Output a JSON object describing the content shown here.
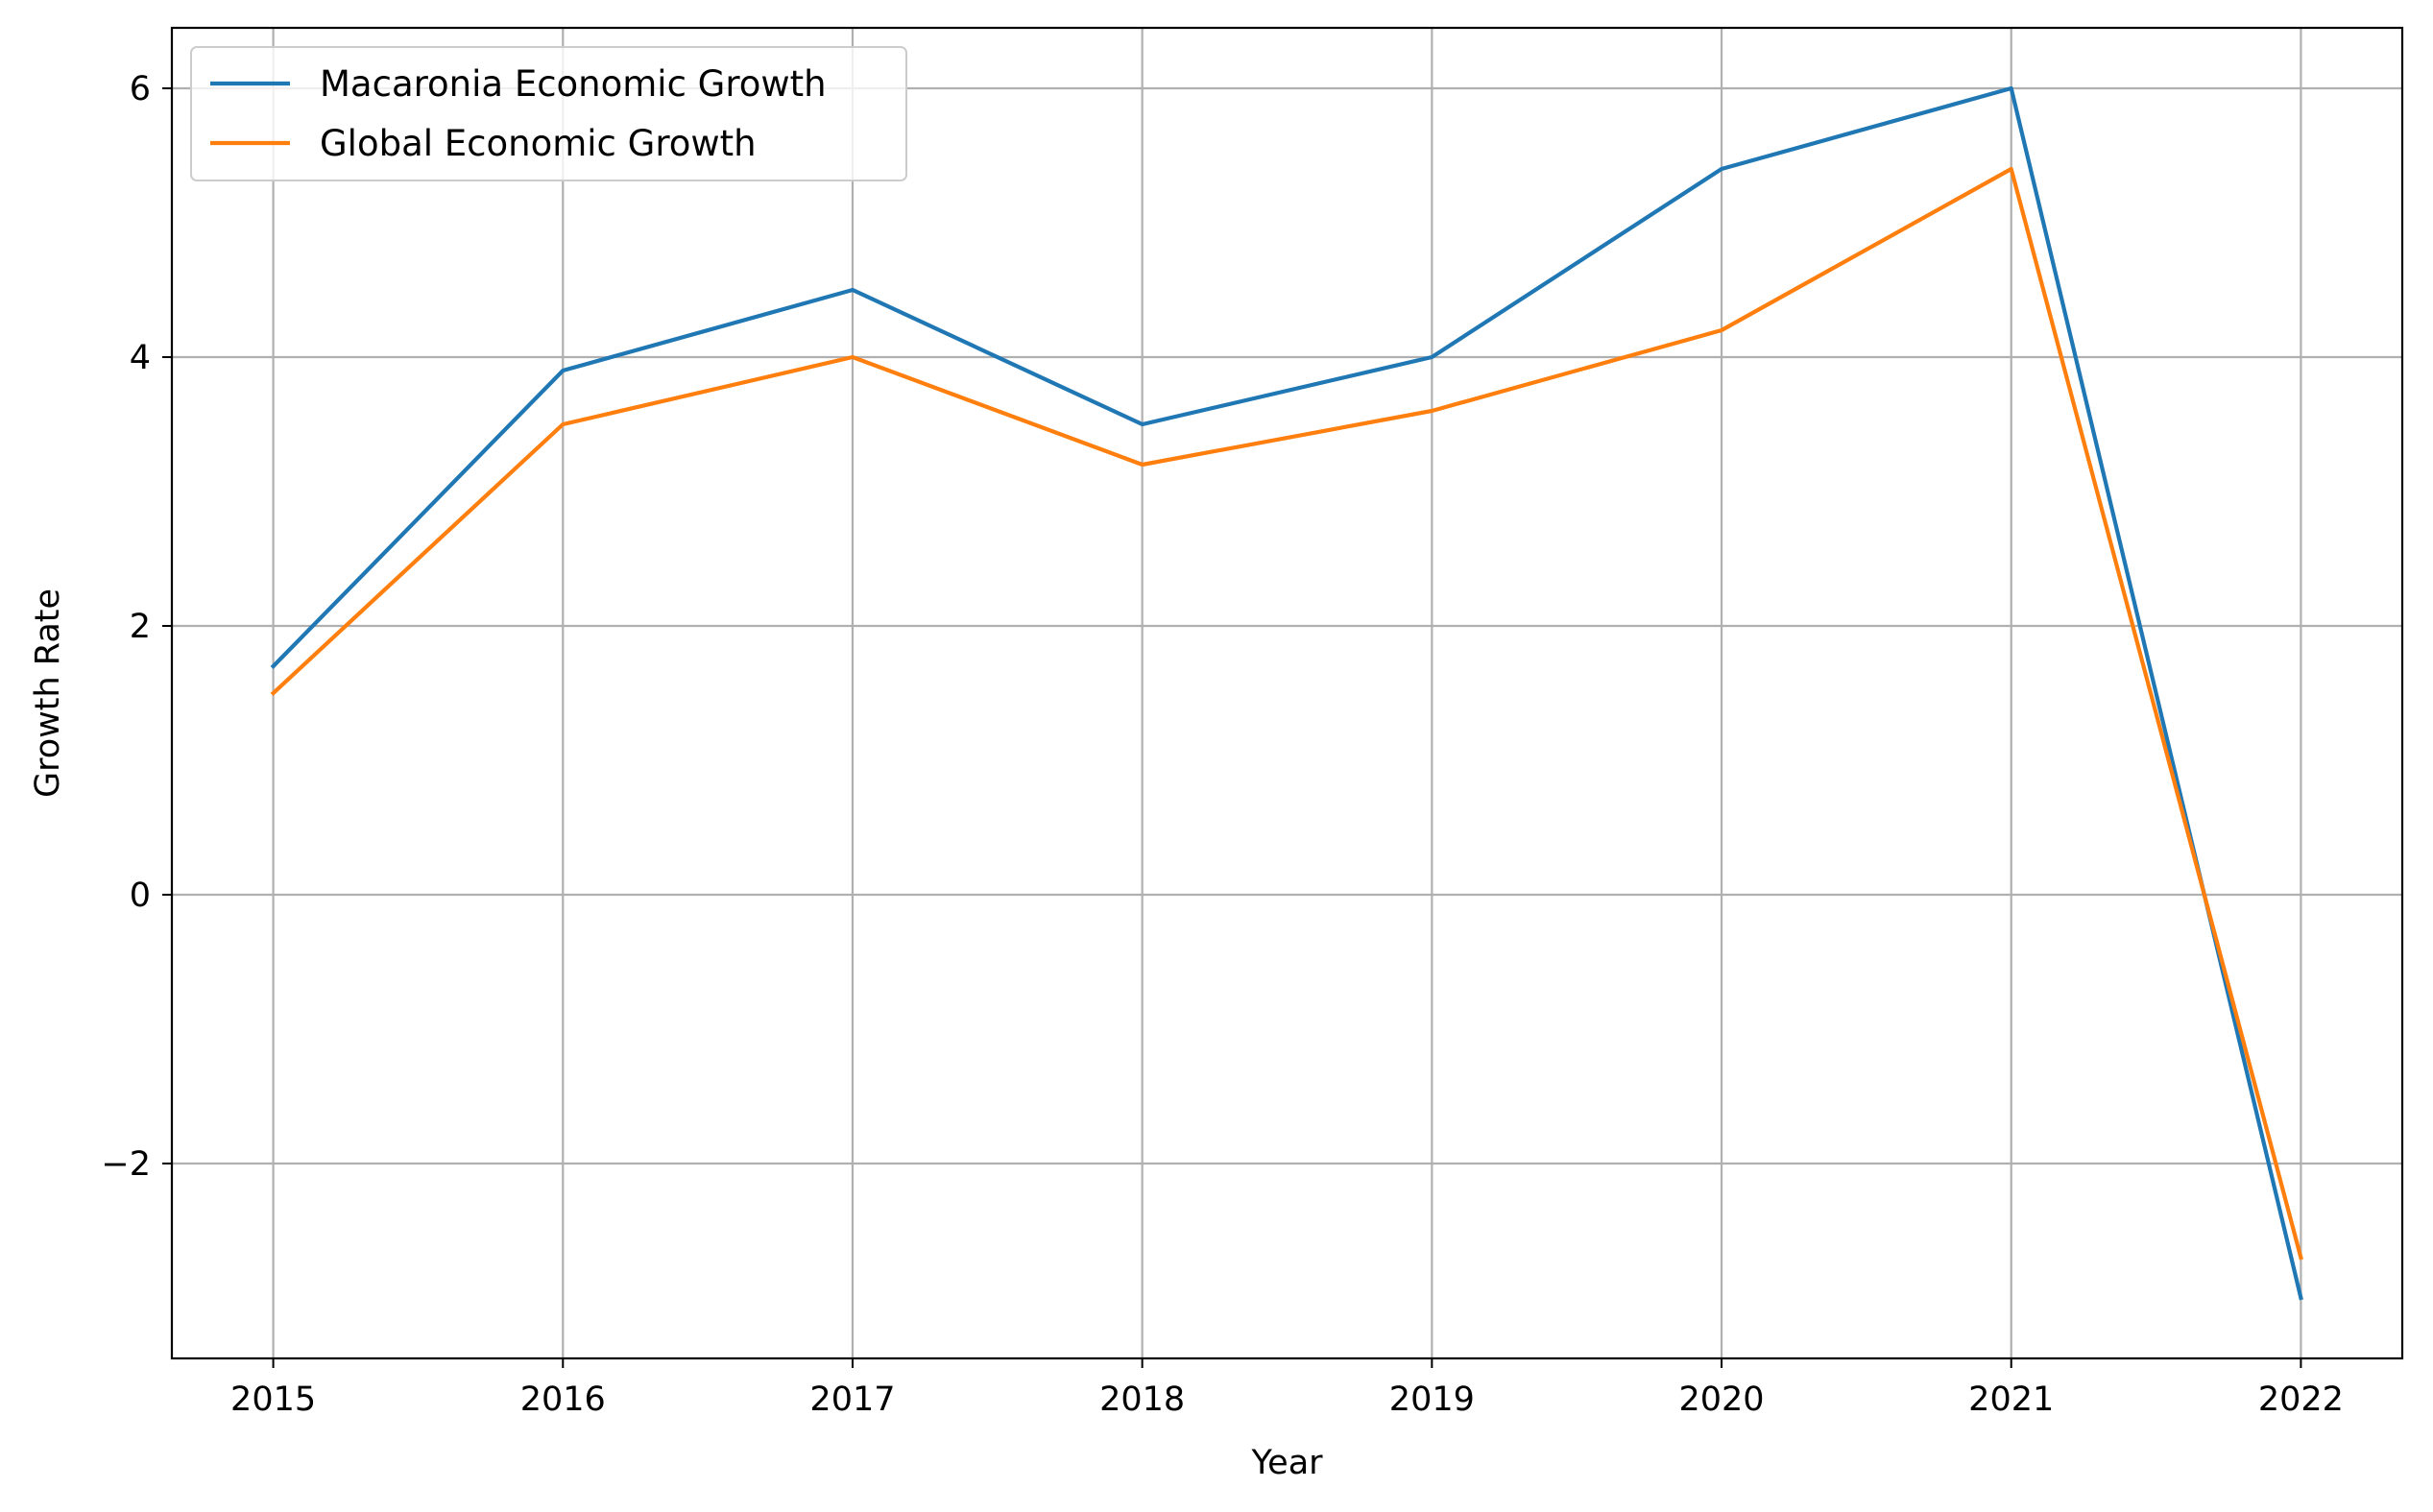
{
  "chart_data": {
    "type": "line",
    "title": "",
    "xlabel": "Year",
    "ylabel": "Growth Rate",
    "x": [
      2015,
      2016,
      2017,
      2018,
      2019,
      2020,
      2021,
      2022
    ],
    "series": [
      {
        "name": "Macaronia Economic Growth",
        "color": "#1f77b4",
        "values": [
          1.7,
          3.9,
          4.5,
          3.5,
          4.0,
          5.4,
          6.0,
          -3.0
        ]
      },
      {
        "name": "Global Economic Growth",
        "color": "#ff7f0e",
        "values": [
          1.5,
          3.5,
          4.0,
          3.2,
          3.6,
          4.2,
          5.4,
          -2.7
        ]
      }
    ],
    "xlim": [
      2014.65,
      2022.35
    ],
    "ylim": [
      -3.45,
      6.45
    ],
    "yticks": [
      -2,
      0,
      2,
      4,
      6
    ],
    "grid": true,
    "legend_position": "top-left"
  }
}
